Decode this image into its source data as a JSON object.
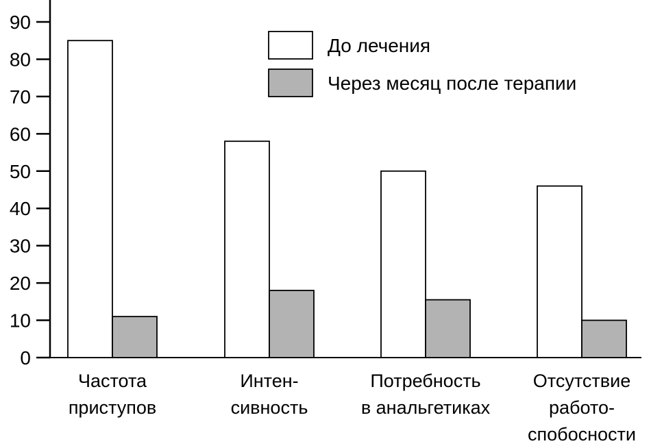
{
  "chart_data": {
    "type": "bar",
    "title": "",
    "xlabel": "",
    "ylabel": "",
    "ylim": [
      0,
      90
    ],
    "yticks": [
      0,
      10,
      20,
      30,
      40,
      50,
      60,
      70,
      80,
      90
    ],
    "grid": false,
    "legend_position": "top-right",
    "categories": [
      [
        "Частота",
        "приступов"
      ],
      [
        "Интен-",
        "сивность"
      ],
      [
        "Потребность",
        "в анальгетиках"
      ],
      [
        "Отсутствие",
        "работо-",
        "спобосности"
      ]
    ],
    "series": [
      {
        "name": "До лечения",
        "color": "#ffffff",
        "values": [
          85,
          58,
          50,
          46
        ]
      },
      {
        "name": "Через месяц после терапии",
        "color": "#b3b3b3",
        "values": [
          11,
          18,
          15.5,
          10
        ]
      }
    ]
  }
}
